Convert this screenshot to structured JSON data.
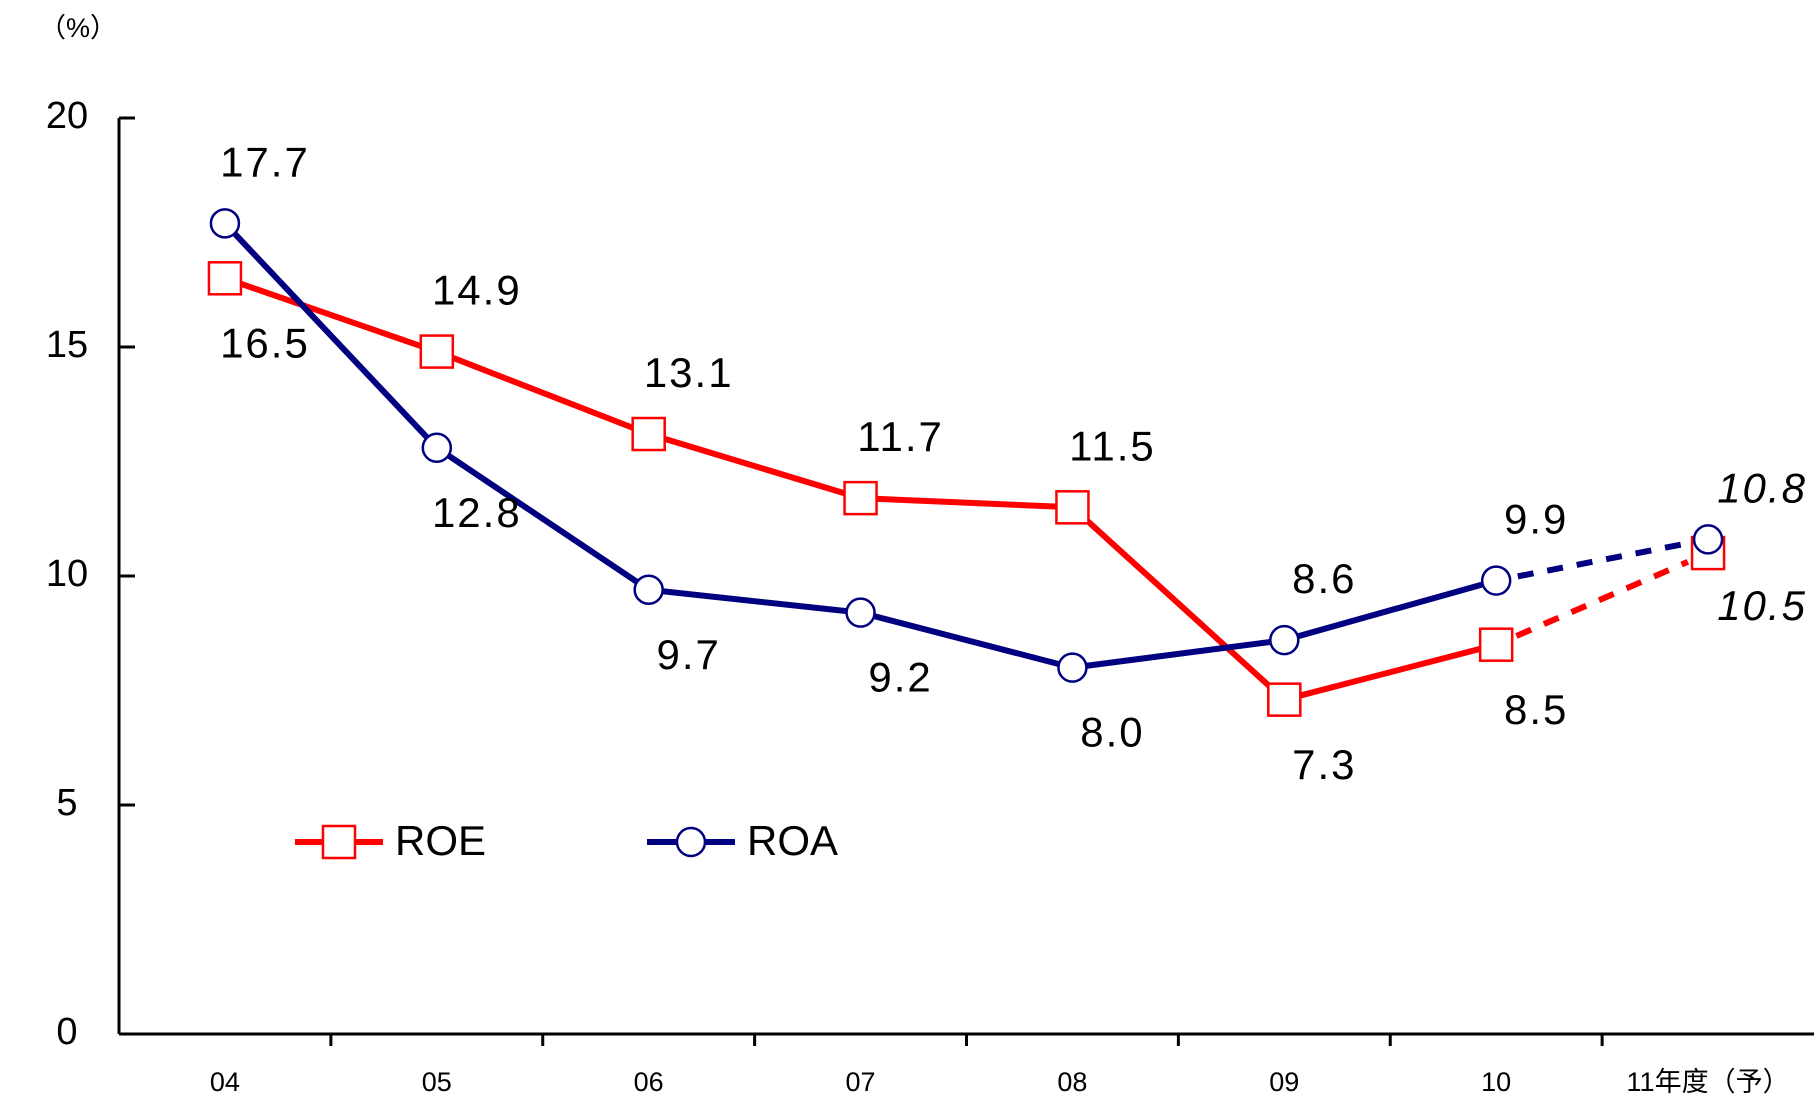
{
  "chart_data": {
    "type": "line",
    "y_unit": "（%）",
    "categories": [
      "04",
      "05",
      "06",
      "07",
      "08",
      "09",
      "10",
      "11年度（予）"
    ],
    "series": [
      {
        "name": "ROE",
        "color": "#ff0000",
        "marker": "square",
        "values": [
          16.5,
          14.9,
          13.1,
          11.7,
          11.5,
          7.3,
          8.5,
          10.5
        ],
        "value_labels": [
          "16.5",
          "14.9",
          "13.1",
          "11.7",
          "11.5",
          "7.3",
          "8.5",
          "10.5"
        ]
      },
      {
        "name": "ROA",
        "color": "#000080",
        "marker": "circle",
        "values": [
          17.7,
          12.8,
          9.7,
          9.2,
          8.0,
          8.6,
          9.9,
          10.8
        ],
        "value_labels": [
          "17.7",
          "12.8",
          "9.7",
          "9.2",
          "8.0",
          "8.6",
          "9.9",
          "10.8"
        ]
      }
    ],
    "ylim": [
      0,
      20
    ],
    "yticks": [
      0,
      5,
      10,
      15,
      20
    ],
    "legend": "lower left"
  }
}
